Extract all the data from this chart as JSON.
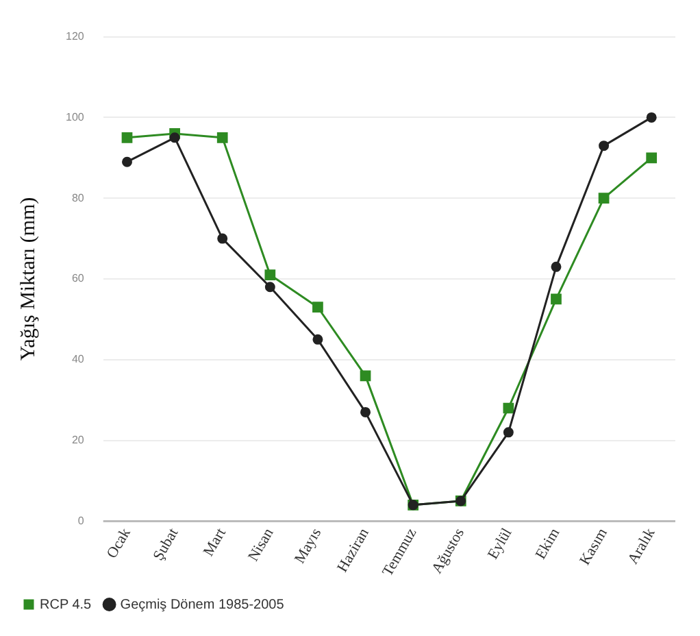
{
  "chart_data": {
    "type": "line",
    "ylabel": "Yağış Miktarı (mm)",
    "categories": [
      "Ocak",
      "Şubat",
      "Mart",
      "Nisan",
      "Mayıs",
      "Haziran",
      "Temmuz",
      "Ağustos",
      "Eylül",
      "Ekim",
      "Kasım",
      "Aralık"
    ],
    "series": [
      {
        "name": "RCP 4.5",
        "color": "#2e8b22",
        "marker": "square",
        "values": [
          95,
          96,
          95,
          61,
          53,
          36,
          4,
          5,
          28,
          55,
          80,
          90
        ]
      },
      {
        "name": "Geçmiş Dönem 1985-2005",
        "color": "#222222",
        "marker": "circle",
        "values": [
          89,
          95,
          70,
          58,
          45,
          27,
          4,
          5,
          22,
          63,
          93,
          100
        ]
      }
    ],
    "ylim": [
      0,
      120
    ],
    "yticks": [
      0,
      20,
      40,
      60,
      80,
      100,
      120
    ],
    "grid": "y",
    "legend": "bottom left",
    "line_style": "solid"
  }
}
